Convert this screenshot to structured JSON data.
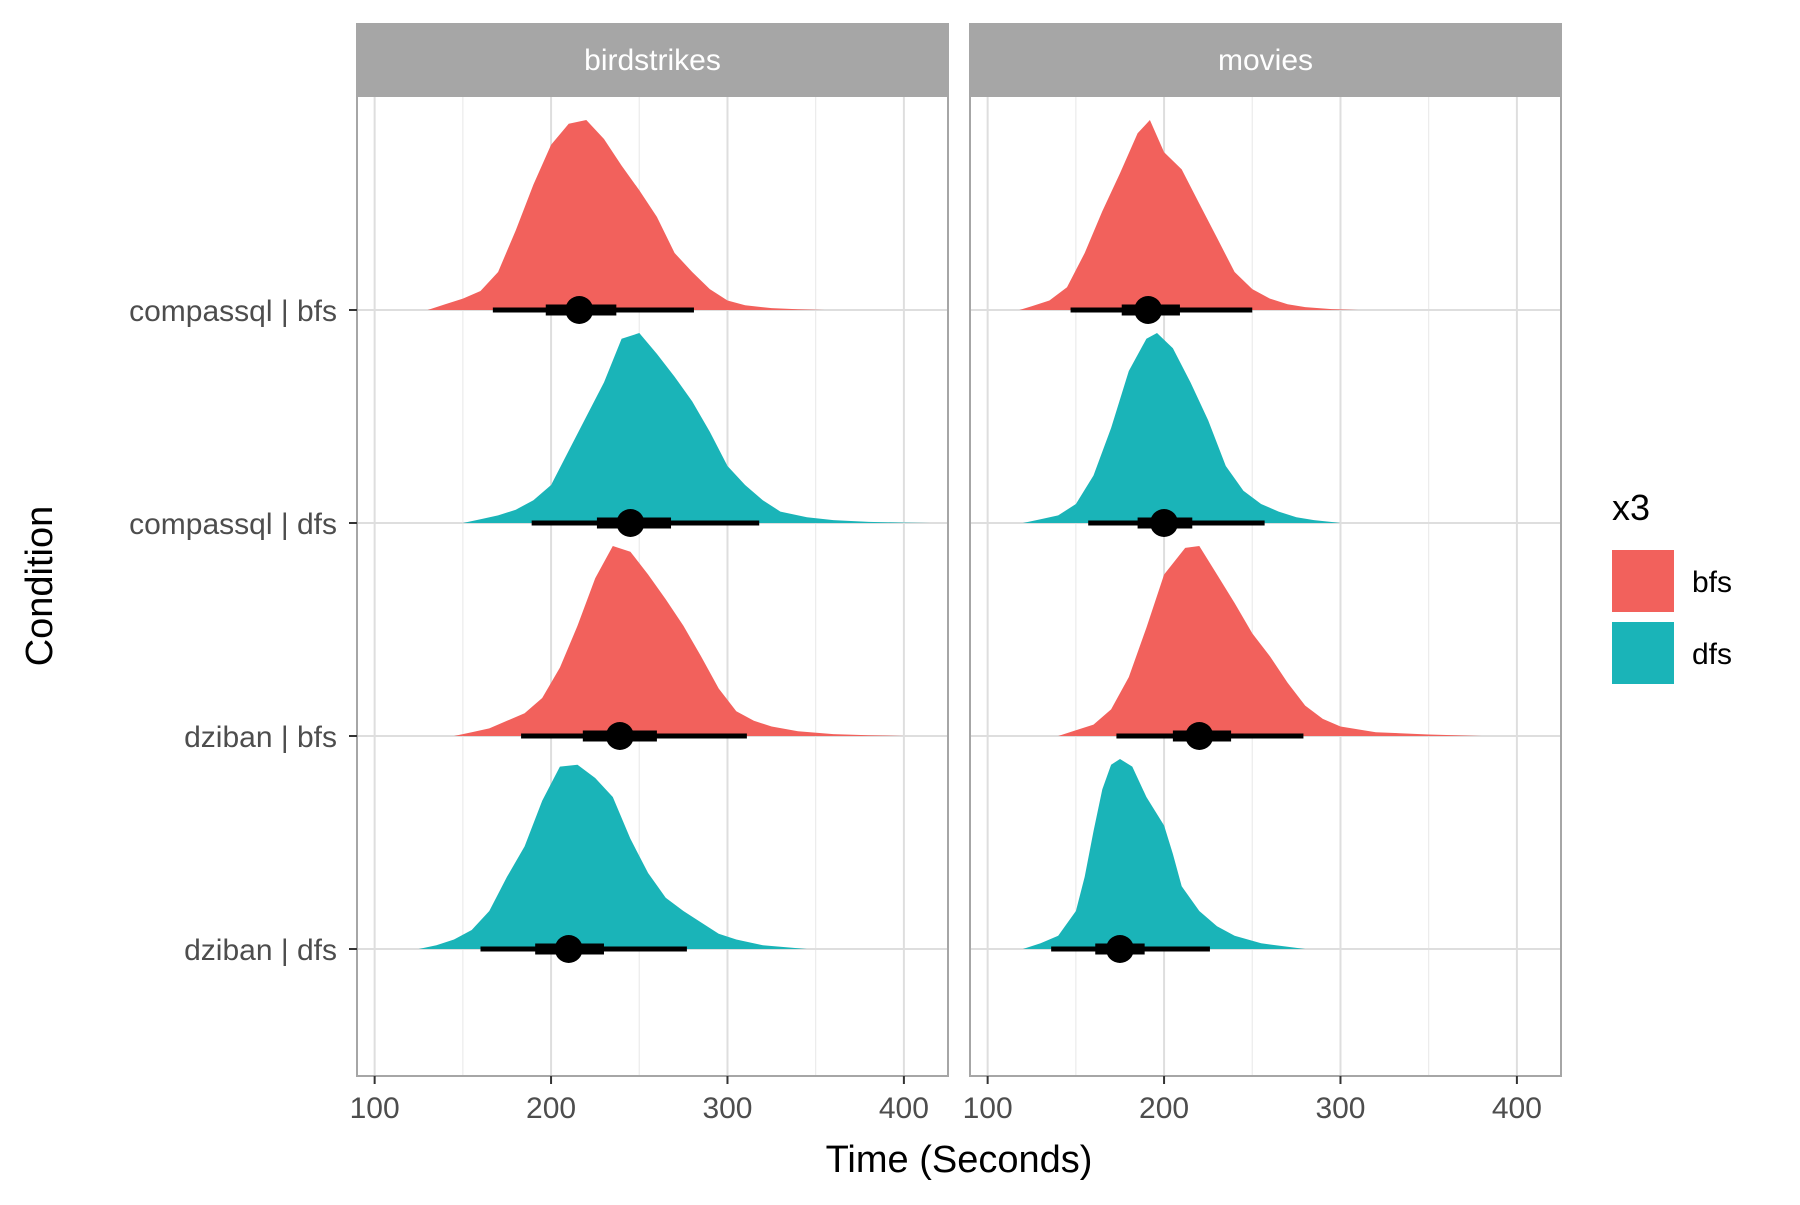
{
  "chart_data": {
    "type": "halfeye",
    "xlabel": "Time (Seconds)",
    "ylabel": "Condition",
    "xlim": [
      90,
      425
    ],
    "x_ticks": [
      100,
      200,
      300,
      400
    ],
    "categories": [
      "compassql | bfs",
      "compassql | dfs",
      "dziban | bfs",
      "dziban | dfs"
    ],
    "legend": {
      "title": "x3",
      "position": "right",
      "items": [
        {
          "label": "bfs",
          "color": "#F2615C"
        },
        {
          "label": "dfs",
          "color": "#1AB4B8"
        }
      ]
    },
    "grid": true,
    "panels": [
      {
        "title": "birdstrikes",
        "distributions": [
          {
            "condition": "compassql | bfs",
            "fill": "bfs",
            "density": [
              [
                130,
                0
              ],
              [
                140,
                0.03
              ],
              [
                150,
                0.06
              ],
              [
                160,
                0.1
              ],
              [
                170,
                0.2
              ],
              [
                180,
                0.42
              ],
              [
                190,
                0.66
              ],
              [
                200,
                0.87
              ],
              [
                210,
                0.98
              ],
              [
                220,
                1.0
              ],
              [
                230,
                0.9
              ],
              [
                240,
                0.76
              ],
              [
                250,
                0.63
              ],
              [
                260,
                0.49
              ],
              [
                270,
                0.3
              ],
              [
                280,
                0.2
              ],
              [
                290,
                0.11
              ],
              [
                300,
                0.05
              ],
              [
                310,
                0.025
              ],
              [
                325,
                0.01
              ],
              [
                340,
                0.004
              ],
              [
                355,
                0
              ]
            ],
            "point": 216,
            "inner": [
              197,
              237
            ],
            "outer": [
              167,
              281
            ]
          },
          {
            "condition": "compassql | dfs",
            "fill": "dfs",
            "density": [
              [
                150,
                0
              ],
              [
                160,
                0.02
              ],
              [
                170,
                0.04
              ],
              [
                180,
                0.07
              ],
              [
                190,
                0.12
              ],
              [
                200,
                0.2
              ],
              [
                210,
                0.38
              ],
              [
                220,
                0.56
              ],
              [
                230,
                0.74
              ],
              [
                240,
                0.97
              ],
              [
                250,
                1.0
              ],
              [
                260,
                0.89
              ],
              [
                270,
                0.77
              ],
              [
                280,
                0.64
              ],
              [
                290,
                0.48
              ],
              [
                300,
                0.3
              ],
              [
                310,
                0.2
              ],
              [
                320,
                0.12
              ],
              [
                330,
                0.06
              ],
              [
                345,
                0.03
              ],
              [
                360,
                0.015
              ],
              [
                380,
                0.006
              ],
              [
                400,
                0.002
              ],
              [
                415,
                0
              ]
            ],
            "point": 245,
            "inner": [
              226,
              268
            ],
            "outer": [
              189,
              318
            ]
          },
          {
            "condition": "dziban | bfs",
            "fill": "bfs",
            "density": [
              [
                145,
                0
              ],
              [
                155,
                0.02
              ],
              [
                165,
                0.04
              ],
              [
                175,
                0.08
              ],
              [
                185,
                0.12
              ],
              [
                195,
                0.2
              ],
              [
                205,
                0.36
              ],
              [
                215,
                0.58
              ],
              [
                225,
                0.83
              ],
              [
                235,
                1.0
              ],
              [
                245,
                0.97
              ],
              [
                255,
                0.85
              ],
              [
                265,
                0.72
              ],
              [
                275,
                0.58
              ],
              [
                285,
                0.42
              ],
              [
                295,
                0.25
              ],
              [
                305,
                0.13
              ],
              [
                315,
                0.08
              ],
              [
                325,
                0.05
              ],
              [
                340,
                0.025
              ],
              [
                360,
                0.01
              ],
              [
                380,
                0.004
              ],
              [
                400,
                0
              ]
            ],
            "point": 239,
            "inner": [
              218,
              260
            ],
            "outer": [
              183,
              311
            ]
          },
          {
            "condition": "dziban | dfs",
            "fill": "dfs",
            "density": [
              [
                125,
                0
              ],
              [
                135,
                0.02
              ],
              [
                145,
                0.05
              ],
              [
                155,
                0.1
              ],
              [
                165,
                0.2
              ],
              [
                175,
                0.38
              ],
              [
                185,
                0.54
              ],
              [
                195,
                0.78
              ],
              [
                205,
                0.96
              ],
              [
                215,
                0.97
              ],
              [
                225,
                0.9
              ],
              [
                235,
                0.8
              ],
              [
                245,
                0.58
              ],
              [
                255,
                0.4
              ],
              [
                265,
                0.27
              ],
              [
                275,
                0.2
              ],
              [
                285,
                0.14
              ],
              [
                295,
                0.08
              ],
              [
                305,
                0.05
              ],
              [
                320,
                0.02
              ],
              [
                335,
                0.008
              ],
              [
                345,
                0
              ]
            ],
            "point": 210,
            "inner": [
              191,
              230
            ],
            "outer": [
              160,
              277
            ]
          }
        ]
      },
      {
        "title": "movies",
        "distributions": [
          {
            "condition": "compassql | bfs",
            "fill": "bfs",
            "density": [
              [
                118,
                0
              ],
              [
                125,
                0.02
              ],
              [
                135,
                0.05
              ],
              [
                145,
                0.12
              ],
              [
                155,
                0.3
              ],
              [
                165,
                0.52
              ],
              [
                175,
                0.72
              ],
              [
                185,
                0.93
              ],
              [
                192,
                1.0
              ],
              [
                200,
                0.83
              ],
              [
                210,
                0.74
              ],
              [
                220,
                0.56
              ],
              [
                230,
                0.38
              ],
              [
                240,
                0.2
              ],
              [
                250,
                0.11
              ],
              [
                260,
                0.06
              ],
              [
                270,
                0.03
              ],
              [
                280,
                0.015
              ],
              [
                295,
                0.005
              ],
              [
                310,
                0
              ]
            ],
            "point": 191,
            "inner": [
              176,
              209
            ],
            "outer": [
              147,
              250
            ]
          },
          {
            "condition": "compassql | dfs",
            "fill": "dfs",
            "density": [
              [
                120,
                0
              ],
              [
                130,
                0.02
              ],
              [
                140,
                0.04
              ],
              [
                150,
                0.1
              ],
              [
                160,
                0.25
              ],
              [
                170,
                0.5
              ],
              [
                180,
                0.8
              ],
              [
                190,
                0.97
              ],
              [
                196,
                1.0
              ],
              [
                205,
                0.92
              ],
              [
                215,
                0.74
              ],
              [
                225,
                0.54
              ],
              [
                235,
                0.3
              ],
              [
                245,
                0.17
              ],
              [
                255,
                0.1
              ],
              [
                265,
                0.06
              ],
              [
                275,
                0.03
              ],
              [
                285,
                0.015
              ],
              [
                295,
                0.005
              ],
              [
                300,
                0
              ]
            ],
            "point": 200,
            "inner": [
              185,
              216
            ],
            "outer": [
              157,
              257
            ]
          },
          {
            "condition": "dziban | bfs",
            "fill": "bfs",
            "density": [
              [
                140,
                0
              ],
              [
                150,
                0.03
              ],
              [
                160,
                0.06
              ],
              [
                170,
                0.14
              ],
              [
                180,
                0.31
              ],
              [
                190,
                0.57
              ],
              [
                200,
                0.85
              ],
              [
                212,
                0.99
              ],
              [
                220,
                1.0
              ],
              [
                230,
                0.85
              ],
              [
                240,
                0.7
              ],
              [
                250,
                0.54
              ],
              [
                260,
                0.42
              ],
              [
                270,
                0.28
              ],
              [
                280,
                0.16
              ],
              [
                290,
                0.09
              ],
              [
                300,
                0.05
              ],
              [
                320,
                0.02
              ],
              [
                350,
                0.008
              ],
              [
                380,
                0
              ]
            ],
            "point": 220,
            "inner": [
              205,
              238
            ],
            "outer": [
              173,
              279
            ]
          },
          {
            "condition": "dziban | dfs",
            "fill": "dfs",
            "density": [
              [
                120,
                0
              ],
              [
                130,
                0.03
              ],
              [
                140,
                0.07
              ],
              [
                150,
                0.2
              ],
              [
                155,
                0.38
              ],
              [
                160,
                0.62
              ],
              [
                165,
                0.84
              ],
              [
                170,
                0.97
              ],
              [
                175,
                1.0
              ],
              [
                182,
                0.96
              ],
              [
                190,
                0.8
              ],
              [
                200,
                0.65
              ],
              [
                205,
                0.5
              ],
              [
                210,
                0.33
              ],
              [
                220,
                0.2
              ],
              [
                230,
                0.12
              ],
              [
                240,
                0.07
              ],
              [
                255,
                0.03
              ],
              [
                270,
                0.012
              ],
              [
                280,
                0
              ]
            ],
            "point": 175,
            "inner": [
              161,
              189
            ],
            "outer": [
              136,
              226
            ]
          }
        ]
      }
    ]
  }
}
